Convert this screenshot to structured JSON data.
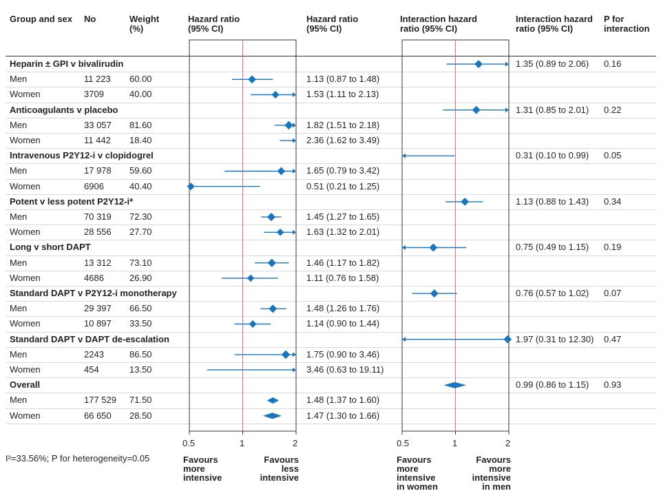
{
  "headers": {
    "group": "Group and sex",
    "no": "No",
    "weight": "Weight\n(%)",
    "hr_plot": "Hazard ratio\n(95% CI)",
    "hr_text": "Hazard ratio\n(95% CI)",
    "ihr_plot": "Interaction hazard\nratio (95% CI)",
    "ihr_text": "Interaction hazard\nratio (95% CI)",
    "p": "P for\ninteraction"
  },
  "footer": {
    "heterogeneity": "I²=33.56%; P for heterogeneity=0.05",
    "hr_left": "Favours\nmore\nintensive",
    "hr_right": "Favours\nless\nintensive",
    "ihr_left": "Favours\nmore\nintensive\nin women",
    "ihr_right": "Favours\nmore\nintensive\nin men"
  },
  "chart_data": {
    "type": "forest",
    "hr_axis": {
      "ticks": [
        "0.5",
        "1",
        "2"
      ],
      "xlim": [
        0.5,
        2
      ],
      "scale": "log",
      "reference": 1
    },
    "ihr_axis": {
      "ticks": [
        "0.5",
        "1",
        "2"
      ],
      "xlim": [
        0.5,
        2
      ],
      "scale": "log",
      "reference": 1
    },
    "rows": [
      {
        "type": "group",
        "label": "Heparin ± GPI v bivalirudin",
        "ihr": 1.35,
        "ihr_lo": 0.89,
        "ihr_hi": 2.06,
        "ihr_text": "1.35 (0.89 to 2.06)",
        "p": "0.16"
      },
      {
        "type": "sub",
        "label": "Men",
        "n": "11 223",
        "w": "60.00",
        "hr": 1.13,
        "lo": 0.87,
        "hi": 1.48,
        "hr_text": "1.13 (0.87 to 1.48)"
      },
      {
        "type": "sub",
        "label": "Women",
        "n": "3709",
        "w": "40.00",
        "hr": 1.53,
        "lo": 1.11,
        "hi": 2.13,
        "hr_text": "1.53 (1.11 to 2.13)"
      },
      {
        "type": "group",
        "label": "Anticoagulants v placebo",
        "ihr": 1.31,
        "ihr_lo": 0.85,
        "ihr_hi": 2.01,
        "ihr_text": "1.31 (0.85 to 2.01)",
        "p": "0.22"
      },
      {
        "type": "sub",
        "label": "Men",
        "n": "33 057",
        "w": "81.60",
        "hr": 1.82,
        "lo": 1.51,
        "hi": 2.18,
        "hr_text": "1.82 (1.51 to 2.18)"
      },
      {
        "type": "sub",
        "label": "Women",
        "n": "11 442",
        "w": "18.40",
        "hr": 2.36,
        "lo": 1.62,
        "hi": 3.49,
        "hr_text": "2.36 (1.62 to 3.49)"
      },
      {
        "type": "group",
        "label": "Intravenous P2Y12-i v clopidogrel",
        "ihr": 0.31,
        "ihr_lo": 0.1,
        "ihr_hi": 0.99,
        "ihr_text": "0.31 (0.10 to 0.99)",
        "p": "0.05"
      },
      {
        "type": "sub",
        "label": "Men",
        "n": "17 978",
        "w": "59.60",
        "hr": 1.65,
        "lo": 0.79,
        "hi": 3.42,
        "hr_text": "1.65 (0.79 to 3.42)"
      },
      {
        "type": "sub",
        "label": "Women",
        "n": "6906",
        "w": "40.40",
        "hr": 0.51,
        "lo": 0.21,
        "hi": 1.25,
        "hr_text": "0.51 (0.21 to 1.25)"
      },
      {
        "type": "group",
        "label": "Potent v less potent P2Y12-i*",
        "ihr": 1.13,
        "ihr_lo": 0.88,
        "ihr_hi": 1.43,
        "ihr_text": "1.13 (0.88 to 1.43)",
        "p": "0.34"
      },
      {
        "type": "sub",
        "label": "Men",
        "n": "70 319",
        "w": "72.30",
        "hr": 1.45,
        "lo": 1.27,
        "hi": 1.65,
        "hr_text": "1.45 (1.27 to 1.65)"
      },
      {
        "type": "sub",
        "label": "Women",
        "n": "28 556",
        "w": "27.70",
        "hr": 1.63,
        "lo": 1.32,
        "hi": 2.01,
        "hr_text": "1.63 (1.32 to 2.01)"
      },
      {
        "type": "group",
        "label": "Long v short DAPT",
        "ihr": 0.75,
        "ihr_lo": 0.49,
        "ihr_hi": 1.15,
        "ihr_text": "0.75 (0.49 to 1.15)",
        "p": "0.19"
      },
      {
        "type": "sub",
        "label": "Men",
        "n": "13 312",
        "w": "73.10",
        "hr": 1.46,
        "lo": 1.17,
        "hi": 1.82,
        "hr_text": "1.46 (1.17 to 1.82)"
      },
      {
        "type": "sub",
        "label": "Women",
        "n": "4686",
        "w": "26.90",
        "hr": 1.11,
        "lo": 0.76,
        "hi": 1.58,
        "hr_text": "1.11 (0.76 to 1.58)"
      },
      {
        "type": "group",
        "label": "Standard DAPT v P2Y12-i monotherapy",
        "ihr": 0.76,
        "ihr_lo": 0.57,
        "ihr_hi": 1.02,
        "ihr_text": "0.76 (0.57 to 1.02)",
        "p": "0.07"
      },
      {
        "type": "sub",
        "label": "Men",
        "n": "29 397",
        "w": "66.50",
        "hr": 1.48,
        "lo": 1.26,
        "hi": 1.76,
        "hr_text": "1.48 (1.26 to 1.76)"
      },
      {
        "type": "sub",
        "label": "Women",
        "n": "10 897",
        "w": "33.50",
        "hr": 1.14,
        "lo": 0.9,
        "hi": 1.44,
        "hr_text": "1.14 (0.90 to 1.44)"
      },
      {
        "type": "group",
        "label": "Standard DAPT v DAPT de-escalation",
        "ihr": 1.97,
        "ihr_lo": 0.31,
        "ihr_hi": 12.3,
        "ihr_text": "1.97 (0.31 to 12.30)",
        "p": "0.47"
      },
      {
        "type": "sub",
        "label": "Men",
        "n": "2243",
        "w": "86.50",
        "hr": 1.75,
        "lo": 0.9,
        "hi": 3.46,
        "hr_text": "1.75 (0.90 to 3.46)"
      },
      {
        "type": "sub",
        "label": "Women",
        "n": "454",
        "w": "13.50",
        "hr": 3.46,
        "lo": 0.63,
        "hi": 19.11,
        "hr_text": "3.46 (0.63 to 19.11)"
      },
      {
        "type": "group",
        "label": "Overall",
        "ihr": 0.99,
        "ihr_lo": 0.86,
        "ihr_hi": 1.15,
        "ihr_text": "0.99 (0.86 to 1.15)",
        "p": "0.93",
        "diamond": true
      },
      {
        "type": "sub",
        "label": "Men",
        "n": "177 529",
        "w": "71.50",
        "hr": 1.48,
        "lo": 1.37,
        "hi": 1.6,
        "hr_text": "1.48 (1.37 to 1.60)",
        "diamond": true
      },
      {
        "type": "sub",
        "label": "Women",
        "n": "66 650",
        "w": "28.50",
        "hr": 1.47,
        "lo": 1.3,
        "hi": 1.66,
        "hr_text": "1.47 (1.30 to 1.66)",
        "diamond": true
      }
    ]
  }
}
